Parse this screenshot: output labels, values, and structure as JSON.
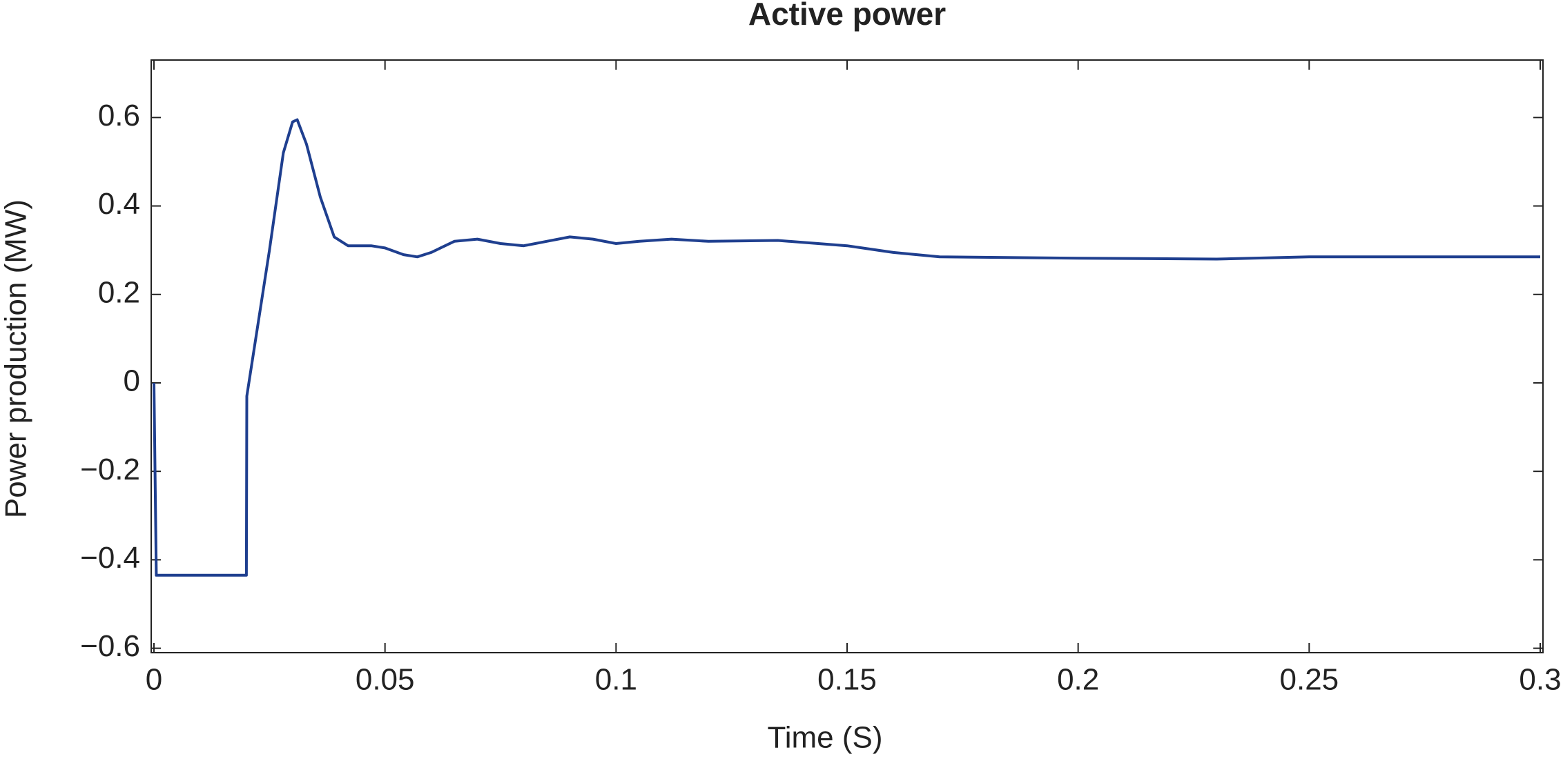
{
  "chart_data": {
    "type": "line",
    "title": "Active power",
    "x_label": "Time (S)",
    "y_label": "Power production (MW)",
    "x": [
      0,
      0.0005,
      0.02,
      0.0201,
      0.025,
      0.028,
      0.03,
      0.031,
      0.033,
      0.036,
      0.039,
      0.042,
      0.047,
      0.05,
      0.054,
      0.057,
      0.06,
      0.065,
      0.07,
      0.075,
      0.08,
      0.085,
      0.09,
      0.095,
      0.1,
      0.105,
      0.112,
      0.12,
      0.135,
      0.15,
      0.16,
      0.17,
      0.2,
      0.23,
      0.25,
      0.3
    ],
    "values": [
      0,
      -0.435,
      -0.435,
      -0.03,
      0.3,
      0.52,
      0.59,
      0.595,
      0.54,
      0.42,
      0.33,
      0.31,
      0.31,
      0.305,
      0.29,
      0.285,
      0.295,
      0.32,
      0.325,
      0.315,
      0.31,
      0.32,
      0.33,
      0.325,
      0.315,
      0.32,
      0.325,
      0.32,
      0.322,
      0.31,
      0.295,
      0.285,
      0.282,
      0.28,
      0.285,
      0.285
    ],
    "color": "#1f3f8f",
    "xlim": [
      -0.0006,
      0.3006
    ],
    "ylim": [
      -0.61,
      0.73
    ],
    "xticks": [
      0,
      0.05,
      0.1,
      0.15,
      0.2,
      0.25,
      0.3
    ],
    "yticks": [
      {
        "value": -0.6,
        "label": "−0.6"
      },
      {
        "value": -0.4,
        "label": "−0.4"
      },
      {
        "value": -0.2,
        "label": "−0.2"
      },
      0,
      0.2,
      0.4,
      0.6
    ]
  }
}
